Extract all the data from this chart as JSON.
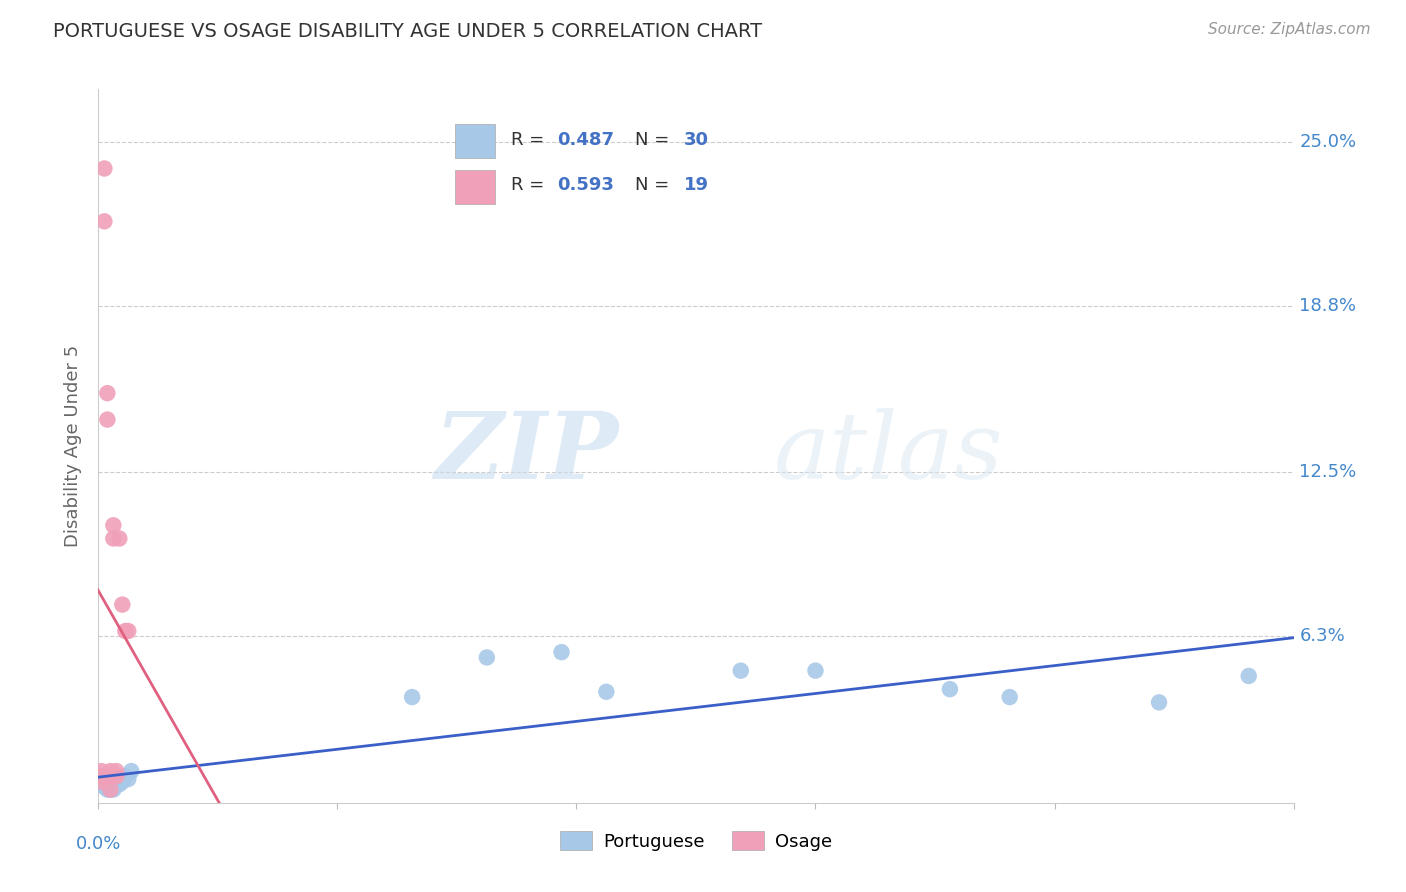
{
  "title": "PORTUGUESE VS OSAGE DISABILITY AGE UNDER 5 CORRELATION CHART",
  "source": "Source: ZipAtlas.com",
  "ylabel": "Disability Age Under 5",
  "watermark_zip": "ZIP",
  "watermark_atlas": "atlas",
  "xlim": [
    0.0,
    0.4
  ],
  "ylim": [
    0.0,
    0.27
  ],
  "portuguese_R": 0.487,
  "portuguese_N": 30,
  "osage_R": 0.593,
  "osage_N": 19,
  "portuguese_color": "#a8c8e8",
  "osage_color": "#f0a0b8",
  "portuguese_line_color": "#3a5fc8",
  "osage_line_color": "#e06080",
  "ytick_vals": [
    0.063,
    0.125,
    0.188,
    0.25
  ],
  "ytick_labels": [
    "6.3%",
    "12.5%",
    "18.8%",
    "25.0%"
  ],
  "portuguese_x": [
    0.001,
    0.001,
    0.002,
    0.002,
    0.002,
    0.003,
    0.003,
    0.003,
    0.004,
    0.004,
    0.004,
    0.005,
    0.005,
    0.005,
    0.006,
    0.007,
    0.008,
    0.009,
    0.01,
    0.011,
    0.105,
    0.13,
    0.155,
    0.17,
    0.215,
    0.24,
    0.285,
    0.305,
    0.355,
    0.385
  ],
  "portuguese_y": [
    0.008,
    0.01,
    0.006,
    0.007,
    0.009,
    0.005,
    0.006,
    0.008,
    0.005,
    0.006,
    0.007,
    0.005,
    0.006,
    0.007,
    0.009,
    0.007,
    0.008,
    0.01,
    0.009,
    0.012,
    0.04,
    0.055,
    0.057,
    0.042,
    0.05,
    0.05,
    0.043,
    0.04,
    0.038,
    0.048
  ],
  "osage_x": [
    0.001,
    0.001,
    0.001,
    0.002,
    0.002,
    0.002,
    0.003,
    0.003,
    0.004,
    0.004,
    0.004,
    0.005,
    0.005,
    0.006,
    0.006,
    0.007,
    0.008,
    0.009,
    0.01
  ],
  "osage_y": [
    0.008,
    0.01,
    0.012,
    0.22,
    0.24,
    0.01,
    0.155,
    0.145,
    0.005,
    0.01,
    0.012,
    0.1,
    0.105,
    0.01,
    0.012,
    0.1,
    0.075,
    0.065,
    0.065
  ]
}
